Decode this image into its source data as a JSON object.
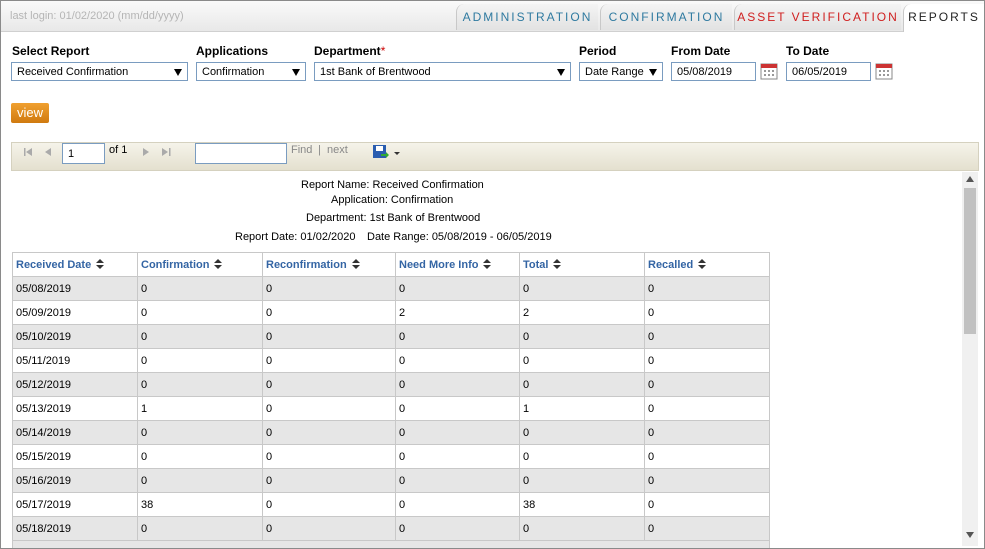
{
  "header": {
    "last_login": "last login: 01/02/2020 (mm/dd/yyyy)",
    "tabs": [
      "ADMINISTRATION",
      "CONFIRMATION",
      "ASSET VERIFICATION",
      "REPORTS"
    ]
  },
  "filters": {
    "select_report": {
      "label": "Select Report",
      "value": "Received Confirmation"
    },
    "applications": {
      "label": "Applications",
      "value": "Confirmation"
    },
    "department": {
      "label": "Department",
      "required_mark": "*",
      "value": "1st Bank of Brentwood"
    },
    "period": {
      "label": "Period",
      "value": "Date Range"
    },
    "from_date": {
      "label": "From Date",
      "value": "05/08/2019"
    },
    "to_date": {
      "label": "To Date",
      "value": "06/05/2019"
    }
  },
  "view_button": "view",
  "toolbar": {
    "page": "1",
    "of": "of 1",
    "find": "Find",
    "separator": "|",
    "next": "next"
  },
  "report": {
    "report_name": "Report Name: Received Confirmation",
    "application": "Application: Confirmation",
    "department": "Department: 1st Bank of Brentwood",
    "report_date": "Report Date: 01/02/2020",
    "date_range": "Date Range: 05/08/2019 - 06/05/2019"
  },
  "table": {
    "columns": [
      "Received Date",
      "Confirmation",
      "Reconfirmation",
      "Need More Info",
      "Total",
      "Recalled"
    ],
    "rows": [
      [
        "05/08/2019",
        0,
        0,
        0,
        0,
        0
      ],
      [
        "05/09/2019",
        0,
        0,
        2,
        2,
        0
      ],
      [
        "05/10/2019",
        0,
        0,
        0,
        0,
        0
      ],
      [
        "05/11/2019",
        0,
        0,
        0,
        0,
        0
      ],
      [
        "05/12/2019",
        0,
        0,
        0,
        0,
        0
      ],
      [
        "05/13/2019",
        1,
        0,
        0,
        1,
        0
      ],
      [
        "05/14/2019",
        0,
        0,
        0,
        0,
        0
      ],
      [
        "05/15/2019",
        0,
        0,
        0,
        0,
        0
      ],
      [
        "05/16/2019",
        0,
        0,
        0,
        0,
        0
      ],
      [
        "05/17/2019",
        38,
        0,
        0,
        38,
        0
      ],
      [
        "05/18/2019",
        0,
        0,
        0,
        0,
        0
      ]
    ]
  }
}
